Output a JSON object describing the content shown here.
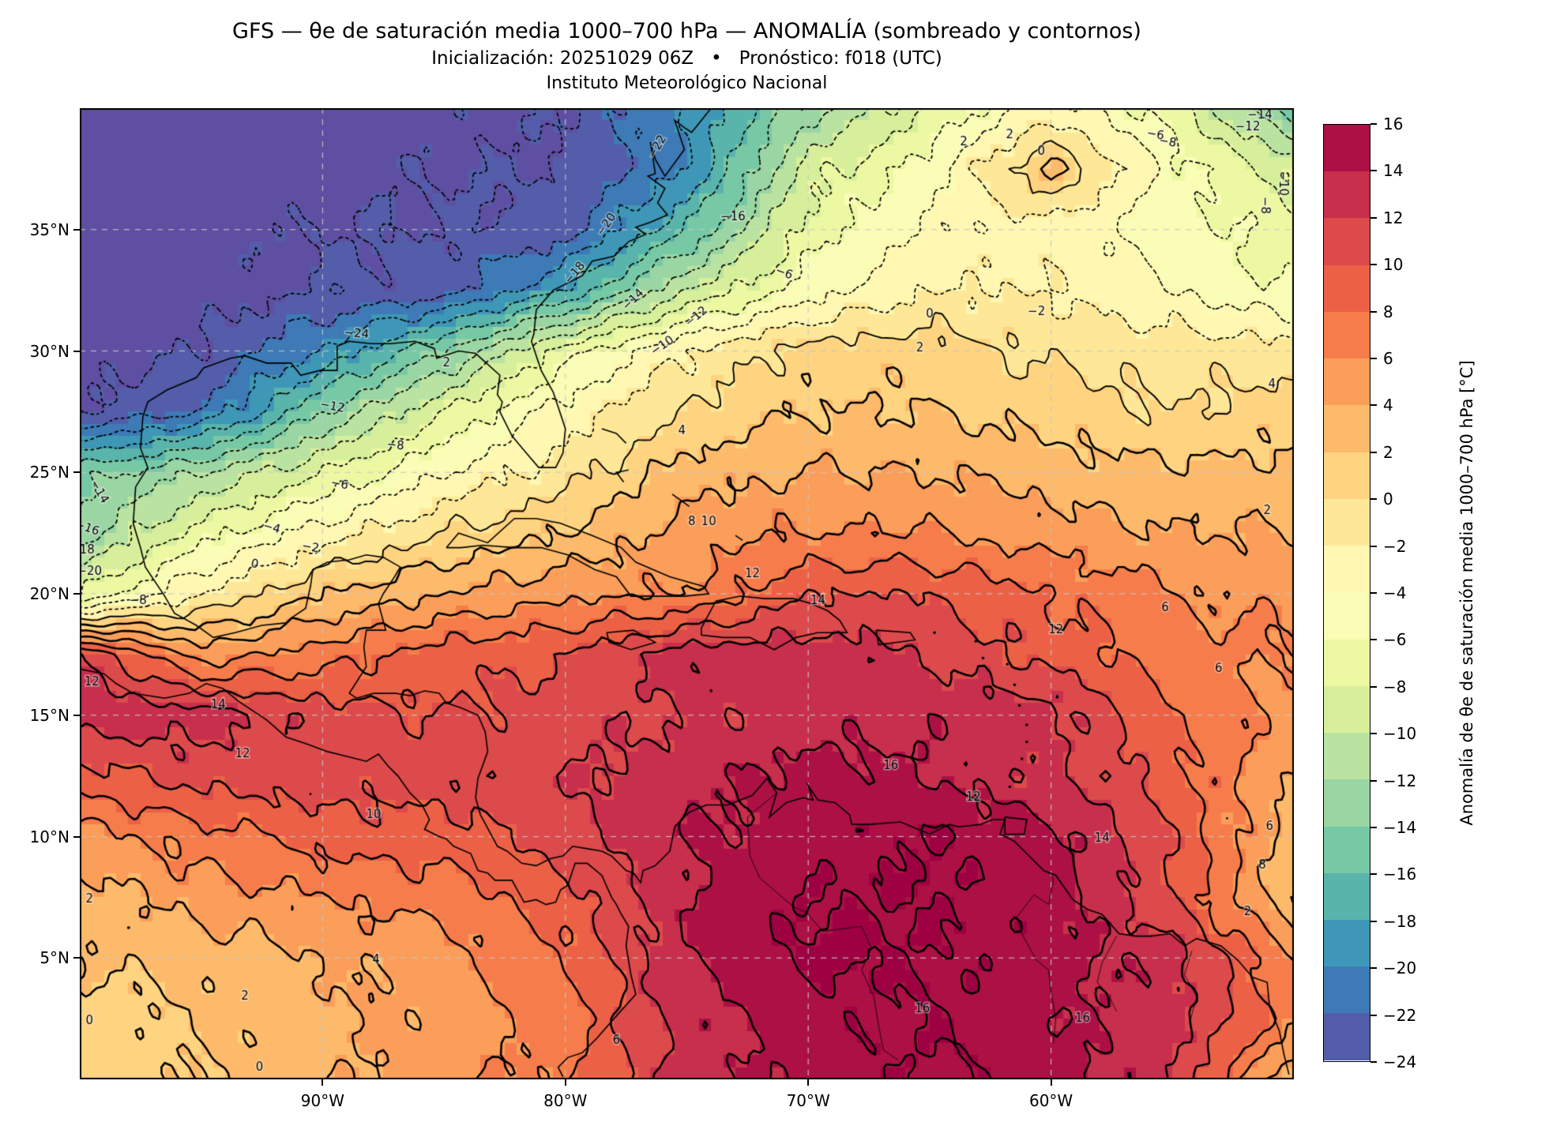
{
  "header": {
    "title": "GFS — θe de saturación media 1000–700 hPa — ANOMALÍA (sombreado y contornos)",
    "subtitle": "Inicialización: 20251029 06Z   •   Pronóstico: f018 (UTC)",
    "institution": "Instituto Meteorológico Nacional"
  },
  "map": {
    "extent": {
      "lon_min": -100,
      "lon_max": -50,
      "lat_min": 0,
      "lat_max": 40
    },
    "axes": {
      "x_ticks": [
        {
          "label": "90°W",
          "lon": -90
        },
        {
          "label": "80°W",
          "lon": -80
        },
        {
          "label": "70°W",
          "lon": -70
        },
        {
          "label": "60°W",
          "lon": -60
        }
      ],
      "y_ticks": [
        {
          "label": "35°N",
          "lat": 35
        },
        {
          "label": "30°N",
          "lat": 30
        },
        {
          "label": "25°N",
          "lat": 25
        },
        {
          "label": "20°N",
          "lat": 20
        },
        {
          "label": "15°N",
          "lat": 15
        },
        {
          "label": "10°N",
          "lat": 10
        },
        {
          "label": "5°N",
          "lat": 5
        }
      ]
    },
    "gridlines": {
      "lons": [
        -90,
        -80,
        -70,
        -60
      ],
      "lats": [
        5,
        10,
        15,
        20,
        25,
        30,
        35
      ],
      "color": "#c6c6c6"
    }
  },
  "chart_data": {
    "type": "heatmap",
    "subtype": "filled-contour-anomaly-map",
    "units": "°C",
    "title": "GFS — θe de saturación media 1000–700 hPa — ANOMALÍA (sombreado y contornos)",
    "levels": {
      "min": -24,
      "max": 16,
      "step": 2
    },
    "colormap": {
      "name": "Spectral_r",
      "anchors": [
        "#9e0142",
        "#d53e4f",
        "#f46d43",
        "#fdae61",
        "#fee08b",
        "#ffffbf",
        "#e6f598",
        "#abdda4",
        "#66c2a5",
        "#3288bd",
        "#5e4fa2"
      ],
      "under": "#5e4fa2",
      "over": "#9e0142"
    },
    "grid": {
      "lons": [
        -100,
        -95,
        -90,
        -85,
        -80,
        -75,
        -70,
        -65,
        -60,
        -55,
        -50
      ],
      "lats": [
        40,
        37.5,
        35,
        32.5,
        30,
        27.5,
        25,
        22.5,
        20,
        17.5,
        15,
        12.5,
        10,
        7.5,
        5,
        2.5,
        0
      ],
      "values": [
        [
          -26,
          -26,
          -25,
          -25,
          -24,
          -20,
          -13,
          -8,
          -3,
          -7,
          -15
        ],
        [
          -26,
          -26,
          -25,
          -24,
          -24,
          -20,
          -9,
          -5,
          2.5,
          -5,
          -9
        ],
        [
          -26,
          -25,
          -24,
          -24,
          -23,
          -16,
          -7,
          -4,
          -3,
          -5,
          -7
        ],
        [
          -25,
          -25,
          -24,
          -23,
          -18,
          -10,
          -5,
          -2,
          -2,
          -4,
          -6
        ],
        [
          -25,
          -24,
          -20,
          -14,
          -7,
          -2,
          1,
          1,
          -0.5,
          -1,
          -1
        ],
        [
          -24,
          -22,
          -14,
          -8,
          -3,
          0,
          2,
          2,
          1,
          0,
          1
        ],
        [
          -15,
          -12,
          -8,
          -4,
          -1,
          3,
          4,
          4,
          3,
          2.5,
          2.5
        ],
        [
          -13,
          -7,
          -3,
          0,
          2,
          5,
          6,
          6,
          5,
          4,
          4
        ],
        [
          -8,
          -2,
          2,
          4,
          5.5,
          6,
          10,
          10,
          8,
          6,
          5.5
        ],
        [
          12,
          5,
          7,
          9,
          10,
          13,
          13,
          12,
          9,
          7,
          6
        ],
        [
          13.5,
          13,
          11,
          10,
          11,
          12,
          13,
          13.5,
          13,
          8,
          5
        ],
        [
          9,
          11,
          11,
          11,
          12,
          13,
          15,
          14,
          12,
          9,
          3.5
        ],
        [
          5,
          7,
          9,
          9,
          11,
          14,
          15,
          16,
          15,
          10,
          3
        ],
        [
          3,
          5,
          6,
          7,
          9,
          14,
          16,
          16,
          15,
          10,
          2
        ],
        [
          2,
          3,
          4,
          5,
          8,
          14,
          16.5,
          16,
          15,
          13,
          6
        ],
        [
          1,
          2,
          3.5,
          5,
          7,
          13,
          15,
          16,
          14.5,
          13,
          7
        ],
        [
          0.5,
          2,
          3.5,
          5,
          7,
          13,
          15,
          16,
          15,
          12,
          2
        ]
      ]
    },
    "contour_labels": [
      {
        "v": -24,
        "lon": -88.6,
        "lat": 30.7,
        "rot": 5
      },
      {
        "v": -22,
        "lon": -76.2,
        "lat": 38.4,
        "rot": -60
      },
      {
        "v": -20,
        "lon": -78.3,
        "lat": 35.2,
        "rot": -55
      },
      {
        "v": -20,
        "lon": -99.6,
        "lat": 20.9,
        "rot": 0
      },
      {
        "v": -18,
        "lon": -79.6,
        "lat": 33.2,
        "rot": -50
      },
      {
        "v": -18,
        "lon": -99.9,
        "lat": 21.8,
        "rot": 0
      },
      {
        "v": -16,
        "lon": -73.1,
        "lat": 35.5,
        "rot": 0
      },
      {
        "v": -16,
        "lon": -99.7,
        "lat": 22.7,
        "rot": 20
      },
      {
        "v": -14,
        "lon": -77.2,
        "lat": 32.1,
        "rot": -45
      },
      {
        "v": -14,
        "lon": -99.2,
        "lat": 24.2,
        "rot": 60
      },
      {
        "v": -14,
        "lon": -51.4,
        "lat": 39.7,
        "rot": 0
      },
      {
        "v": -12,
        "lon": -74.6,
        "lat": 31.4,
        "rot": -40
      },
      {
        "v": -12,
        "lon": -89.6,
        "lat": 27.7,
        "rot": 10
      },
      {
        "v": -12,
        "lon": -51.9,
        "lat": 39.2,
        "rot": 0
      },
      {
        "v": -10,
        "lon": -76.0,
        "lat": 30.2,
        "rot": -35
      },
      {
        "v": -10,
        "lon": -50.45,
        "lat": 36.9,
        "rot": 90
      },
      {
        "v": -8,
        "lon": -87.0,
        "lat": 26.1,
        "rot": 5
      },
      {
        "v": -8,
        "lon": -97.6,
        "lat": 19.7,
        "rot": 0
      },
      {
        "v": -8,
        "lon": -55.2,
        "lat": 38.6,
        "rot": 10
      },
      {
        "v": -8,
        "lon": -51.2,
        "lat": 36.0,
        "rot": 90
      },
      {
        "v": -6,
        "lon": -89.3,
        "lat": 24.5,
        "rot": 10
      },
      {
        "v": -6,
        "lon": -71.0,
        "lat": 33.2,
        "rot": 20
      },
      {
        "v": -6,
        "lon": -55.7,
        "lat": 38.9,
        "rot": 10
      },
      {
        "v": -4,
        "lon": -92.1,
        "lat": 22.7,
        "rot": 15
      },
      {
        "v": -2,
        "lon": -90.5,
        "lat": 21.9,
        "rot": 10
      },
      {
        "v": -2,
        "lon": -60.6,
        "lat": 31.6,
        "rot": 0
      },
      {
        "v": 0,
        "lon": -92.8,
        "lat": 21.2,
        "rot": 10
      },
      {
        "v": 0,
        "lon": -65.0,
        "lat": 31.5,
        "rot": 0
      },
      {
        "v": 0,
        "lon": -60.4,
        "lat": 38.2,
        "rot": 0
      },
      {
        "v": 0,
        "lon": -99.6,
        "lat": 2.4,
        "rot": 0
      },
      {
        "v": 0,
        "lon": -92.6,
        "lat": 0.5,
        "rot": 0
      },
      {
        "v": 2,
        "lon": -84.9,
        "lat": 29.5,
        "rot": 0
      },
      {
        "v": 2,
        "lon": -61.7,
        "lat": 38.9,
        "rot": 0
      },
      {
        "v": 2,
        "lon": -63.6,
        "lat": 38.6,
        "rot": 0
      },
      {
        "v": 2,
        "lon": -65.4,
        "lat": 30.1,
        "rot": 0
      },
      {
        "v": 2,
        "lon": -99.6,
        "lat": 7.4,
        "rot": 0
      },
      {
        "v": 2,
        "lon": -93.2,
        "lat": 3.4,
        "rot": 0
      },
      {
        "v": 2,
        "lon": -51.1,
        "lat": 23.4,
        "rot": 0
      },
      {
        "v": 2,
        "lon": -51.9,
        "lat": 6.9,
        "rot": 0
      },
      {
        "v": 4,
        "lon": -75.2,
        "lat": 26.7,
        "rot": 0
      },
      {
        "v": 4,
        "lon": -87.8,
        "lat": 4.9,
        "rot": 0
      },
      {
        "v": 4,
        "lon": -50.9,
        "lat": 28.6,
        "rot": 0
      },
      {
        "v": 6,
        "lon": -55.3,
        "lat": 19.4,
        "rot": 0
      },
      {
        "v": 6,
        "lon": -51.0,
        "lat": 10.4,
        "rot": 0
      },
      {
        "v": 6,
        "lon": -53.1,
        "lat": 16.9,
        "rot": 0
      },
      {
        "v": 6,
        "lon": -77.9,
        "lat": 1.6,
        "rot": 0
      },
      {
        "v": 8,
        "lon": -74.8,
        "lat": 22.95,
        "rot": 0
      },
      {
        "v": 8,
        "lon": -51.3,
        "lat": 8.8,
        "rot": 0
      },
      {
        "v": 10,
        "lon": -74.1,
        "lat": 22.95,
        "rot": 0
      },
      {
        "v": 10,
        "lon": -87.9,
        "lat": 10.9,
        "rot": 0
      },
      {
        "v": 12,
        "lon": -99.5,
        "lat": 16.35,
        "rot": 0
      },
      {
        "v": 12,
        "lon": -93.3,
        "lat": 13.4,
        "rot": 0
      },
      {
        "v": 12,
        "lon": -72.3,
        "lat": 20.8,
        "rot": 0
      },
      {
        "v": 12,
        "lon": -59.8,
        "lat": 18.5,
        "rot": 0
      },
      {
        "v": 12,
        "lon": -63.2,
        "lat": 11.6,
        "rot": 0
      },
      {
        "v": 14,
        "lon": -94.3,
        "lat": 15.4,
        "rot": 0
      },
      {
        "v": 14,
        "lon": -69.6,
        "lat": 19.7,
        "rot": 0
      },
      {
        "v": 14,
        "lon": -57.9,
        "lat": 9.9,
        "rot": 0
      },
      {
        "v": 16,
        "lon": -66.6,
        "lat": 12.9,
        "rot": 0
      },
      {
        "v": 16,
        "lon": -65.3,
        "lat": 2.9,
        "rot": 0
      },
      {
        "v": 16,
        "lon": -58.7,
        "lat": 2.5,
        "rot": 0
      }
    ]
  },
  "colorbar": {
    "label": "Anomalía de θe de saturación media 1000–700 hPa [°C]",
    "tick_values": [
      16,
      14,
      12,
      10,
      8,
      6,
      4,
      2,
      0,
      -2,
      -4,
      -6,
      -8,
      -10,
      -12,
      -14,
      -16,
      -18,
      -20,
      -22,
      -24
    ],
    "tick_labels": [
      "16",
      "14",
      "12",
      "10",
      "8",
      "6",
      "4",
      "2",
      "0",
      "−2",
      "−4",
      "−6",
      "−8",
      "−10",
      "−12",
      "−14",
      "−16",
      "−18",
      "−20",
      "−22",
      "−24"
    ]
  }
}
